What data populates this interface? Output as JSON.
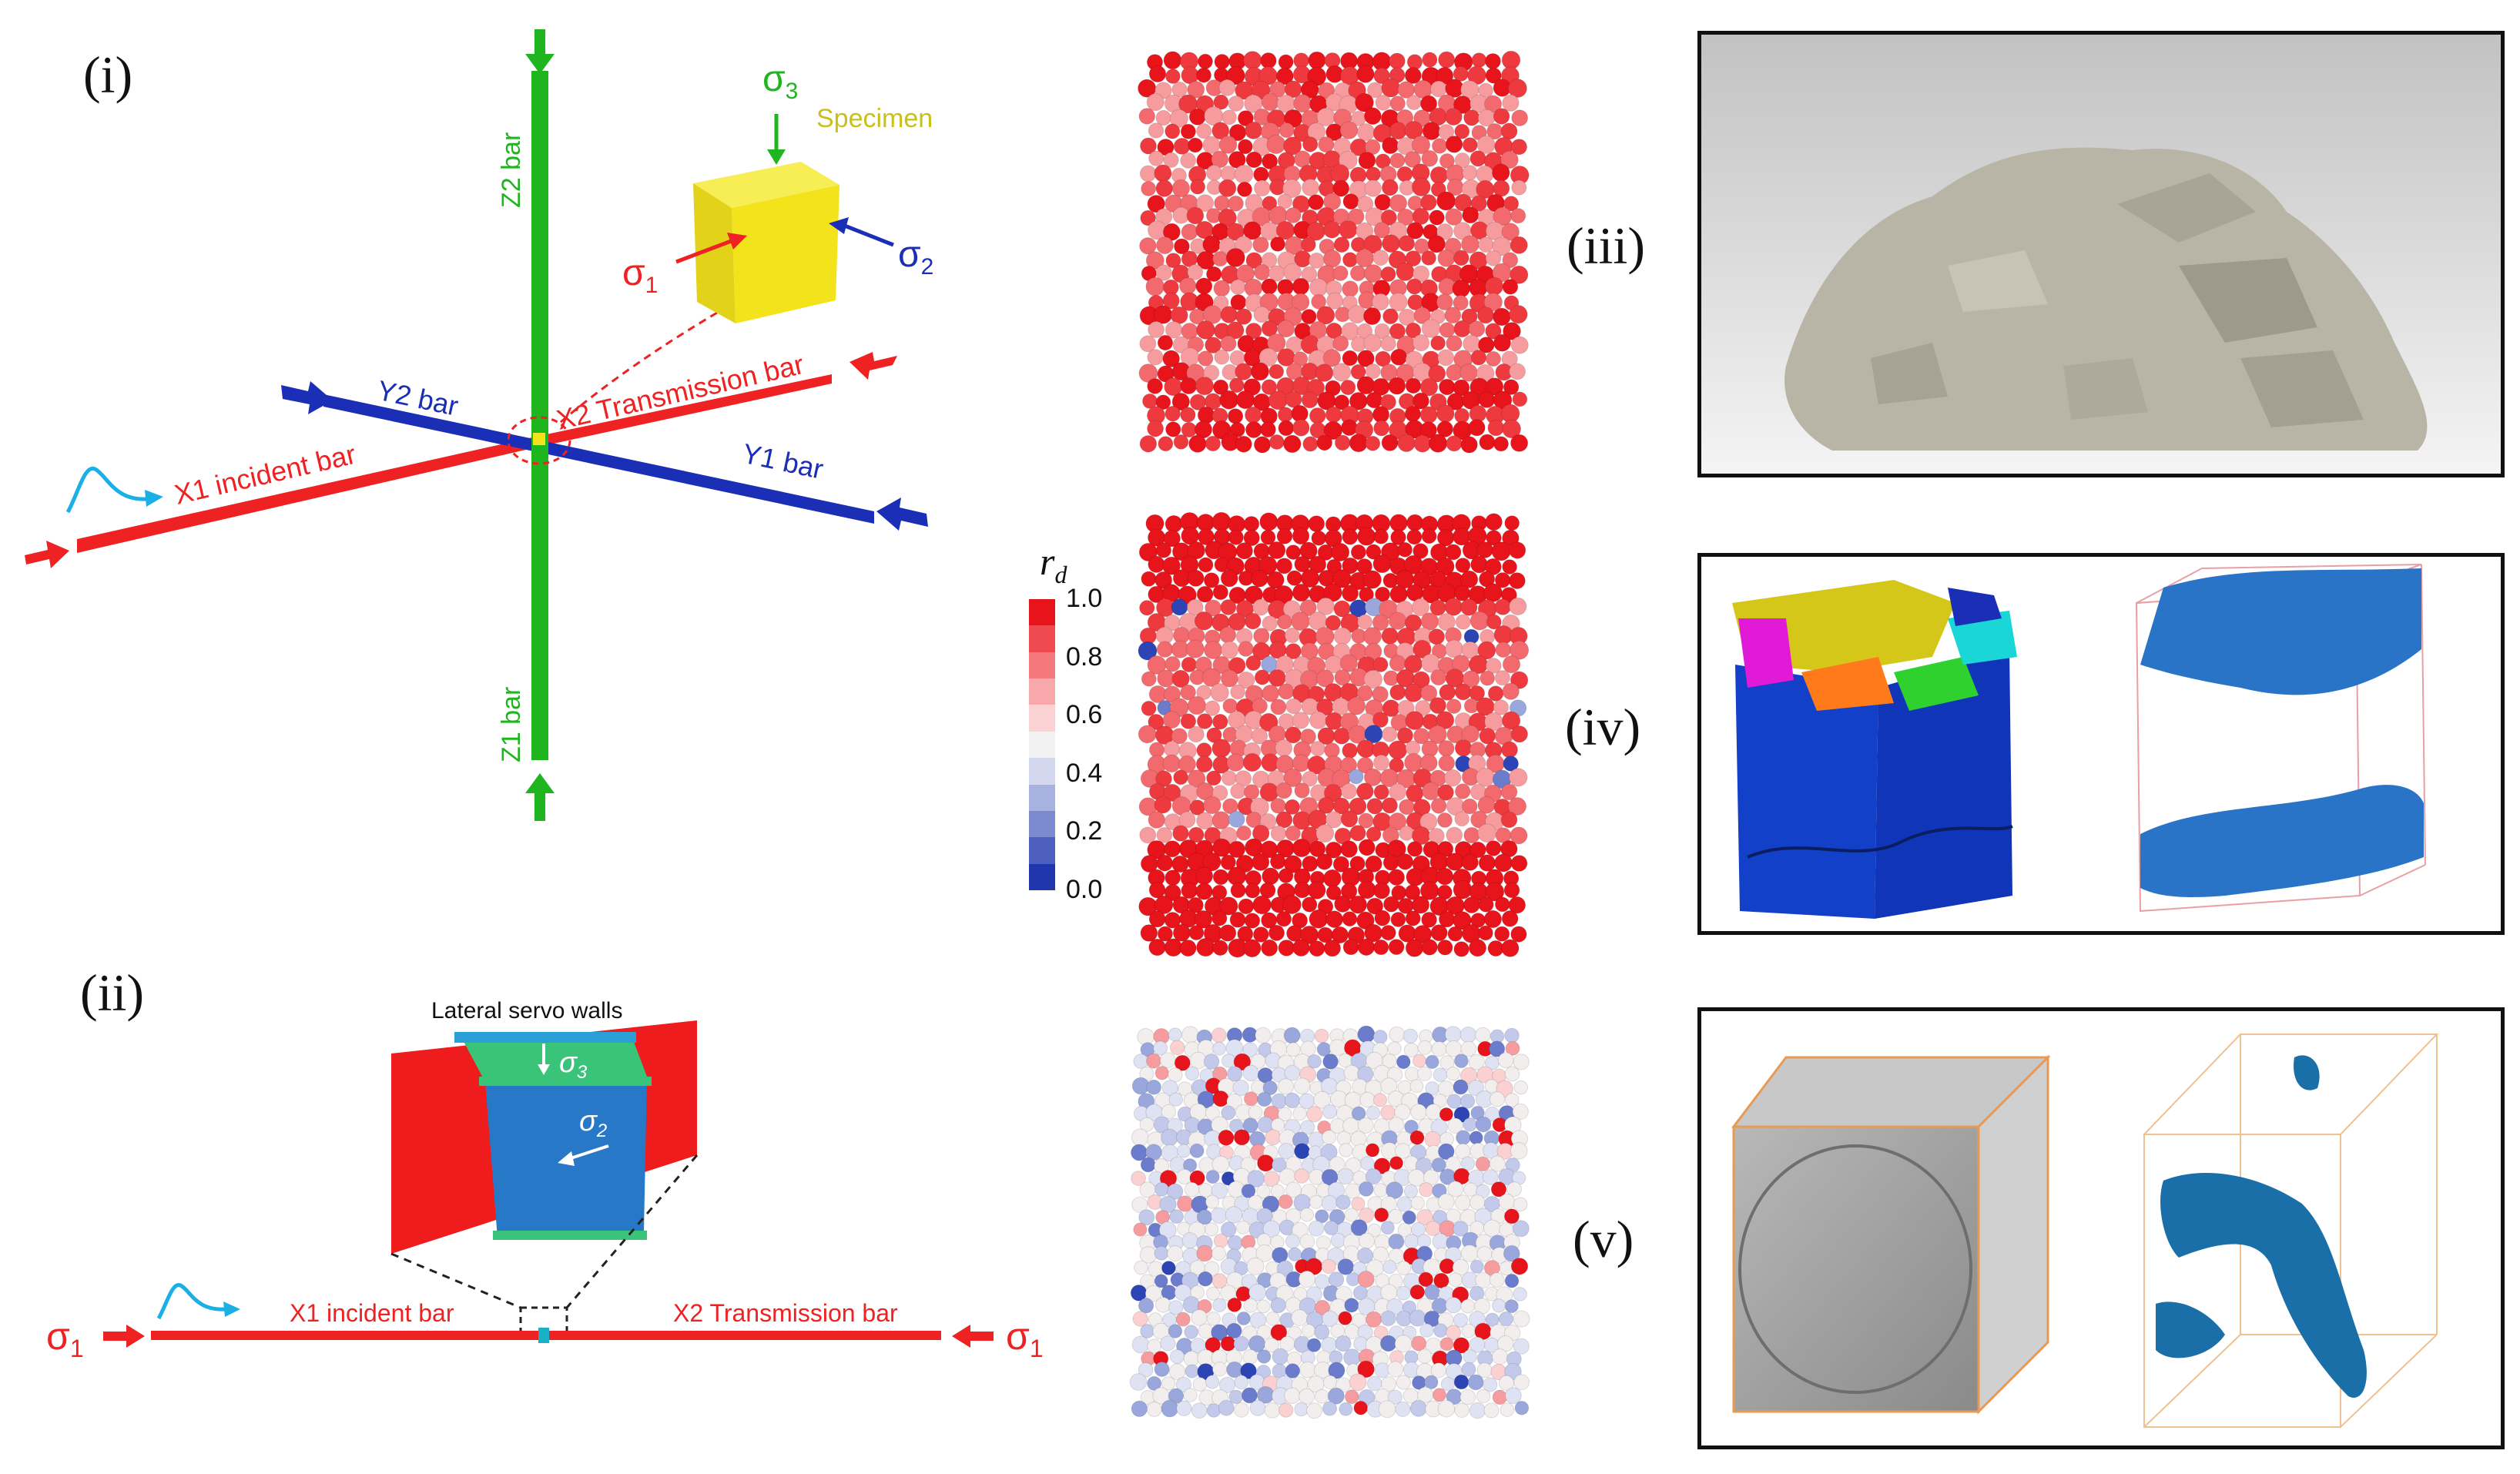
{
  "panels": {
    "i": "(i)",
    "ii": "(ii)",
    "iii": "(iii)",
    "iv": "(iv)",
    "v": "(v)"
  },
  "panel_i": {
    "specimen": "Specimen",
    "sigma1": "σ",
    "sigma1_sub": "1",
    "sigma2": "σ",
    "sigma2_sub": "2",
    "sigma3": "σ",
    "sigma3_sub": "3",
    "z2": "Z2 bar",
    "z1": "Z1 bar",
    "y2": "Y2 bar",
    "y1": "Y1 bar",
    "x1": "X1 incident bar",
    "x2": "X2 Transmission bar",
    "colors": {
      "x": "#ee2222",
      "y": "#1a2fb5",
      "z": "#1fb51f",
      "specimen": "#f2e31a",
      "pulse": "#1ab0e6"
    }
  },
  "panel_ii": {
    "title": "Lateral servo walls",
    "sigma3": "σ",
    "sigma3_sub": "3",
    "sigma2": "σ",
    "sigma2_sub": "2",
    "sigma1_left": "σ",
    "sigma1_left_sub": "1",
    "sigma1_right": "σ",
    "sigma1_right_sub": "1",
    "x1": "X1 incident bar",
    "x2": "X2 Transmission bar"
  },
  "colorbar": {
    "label": "r",
    "label_sub": "d",
    "ticks": [
      "1.0",
      "0.8",
      "0.6",
      "0.4",
      "0.2",
      "0.0"
    ],
    "colors": [
      "#e8141b",
      "#ef4a4f",
      "#f4797c",
      "#f8a8aa",
      "#fbd2d3",
      "#f2f2f2",
      "#d3d8ee",
      "#a8b2e0",
      "#7c8ad0",
      "#4d5fbf",
      "#1f36ad"
    ]
  }
}
